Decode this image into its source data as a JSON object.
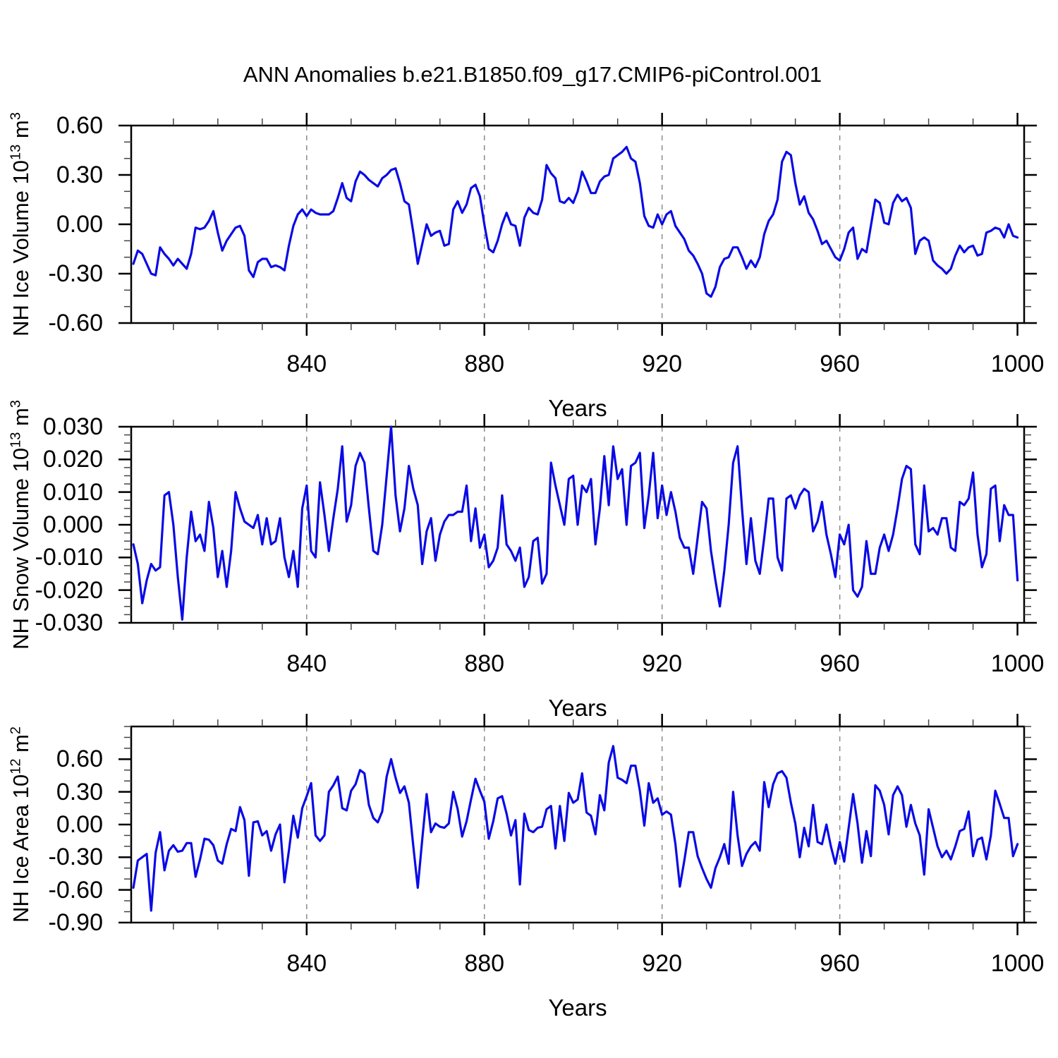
{
  "title": "ANN Anomalies b.e21.B1850.f09_g17.CMIP6-piControl.001",
  "line_color": "#0A0AE6",
  "grid_color": "#8a8a8a",
  "frame_color": "#000000",
  "x": {
    "label": "Years",
    "lim": [
      800.5,
      1001.5
    ],
    "ticks": [
      840,
      880,
      920,
      960,
      1000
    ],
    "tick_labels": [
      "840",
      "880",
      "920",
      "960",
      "1000"
    ],
    "minor_step": 10,
    "grid": [
      840,
      880,
      920,
      960
    ],
    "start_year": 801
  },
  "chart_data": [
    {
      "type": "line",
      "name": "nh-ice-volume",
      "ylabel": {
        "text": "NH Ice Volume 10",
        "sup1": "13",
        "mid": " m",
        "sup2": "3"
      },
      "ylim": [
        -0.6,
        0.6
      ],
      "ytick_values": [
        0.6,
        0.3,
        0.0,
        -0.3,
        -0.6
      ],
      "ytick_labels": [
        "0.60",
        "0.30",
        "0.00",
        "-0.30",
        "-0.60"
      ],
      "ytick_minor_step": 0.1,
      "grid": "dashed-vertical",
      "legend": "none",
      "values": [
        -0.24,
        -0.16,
        -0.18,
        -0.24,
        -0.3,
        -0.31,
        -0.14,
        -0.18,
        -0.21,
        -0.25,
        -0.21,
        -0.24,
        -0.27,
        -0.18,
        -0.02,
        -0.03,
        -0.02,
        0.02,
        0.08,
        -0.05,
        -0.16,
        -0.1,
        -0.06,
        -0.02,
        -0.01,
        -0.07,
        -0.28,
        -0.32,
        -0.23,
        -0.21,
        -0.21,
        -0.26,
        -0.25,
        -0.26,
        -0.28,
        -0.13,
        -0.01,
        0.06,
        0.09,
        0.05,
        0.09,
        0.07,
        0.06,
        0.06,
        0.06,
        0.08,
        0.16,
        0.25,
        0.16,
        0.14,
        0.26,
        0.32,
        0.3,
        0.27,
        0.25,
        0.23,
        0.28,
        0.3,
        0.33,
        0.34,
        0.25,
        0.14,
        0.12,
        -0.05,
        -0.24,
        -0.12,
        0.0,
        -0.07,
        -0.05,
        -0.04,
        -0.13,
        -0.12,
        0.09,
        0.14,
        0.07,
        0.12,
        0.22,
        0.24,
        0.17,
        0.0,
        -0.15,
        -0.17,
        -0.1,
        0.0,
        0.07,
        0.0,
        -0.01,
        -0.13,
        0.04,
        0.1,
        0.07,
        0.06,
        0.15,
        0.36,
        0.31,
        0.28,
        0.14,
        0.13,
        0.16,
        0.13,
        0.2,
        0.32,
        0.26,
        0.19,
        0.19,
        0.26,
        0.29,
        0.3,
        0.4,
        0.42,
        0.44,
        0.47,
        0.4,
        0.38,
        0.25,
        0.05,
        -0.01,
        -0.02,
        0.06,
        0.0,
        0.06,
        0.08,
        -0.01,
        -0.05,
        -0.09,
        -0.16,
        -0.19,
        -0.24,
        -0.3,
        -0.42,
        -0.44,
        -0.38,
        -0.26,
        -0.21,
        -0.2,
        -0.14,
        -0.14,
        -0.2,
        -0.27,
        -0.22,
        -0.26,
        -0.2,
        -0.06,
        0.02,
        0.06,
        0.15,
        0.38,
        0.44,
        0.42,
        0.25,
        0.12,
        0.17,
        0.07,
        0.03,
        -0.04,
        -0.12,
        -0.1,
        -0.15,
        -0.2,
        -0.22,
        -0.15,
        -0.05,
        -0.02,
        -0.21,
        -0.15,
        -0.17,
        -0.01,
        0.15,
        0.13,
        0.01,
        0.0,
        0.13,
        0.18,
        0.14,
        0.16,
        0.1,
        -0.18,
        -0.1,
        -0.08,
        -0.1,
        -0.22,
        -0.25,
        -0.27,
        -0.3,
        -0.27,
        -0.19,
        -0.13,
        -0.17,
        -0.14,
        -0.13,
        -0.19,
        -0.18,
        -0.05,
        -0.04,
        -0.02,
        -0.03,
        -0.08,
        0.0,
        -0.07,
        -0.08
      ]
    },
    {
      "type": "line",
      "name": "nh-snow-volume",
      "ylabel": {
        "text": "NH Snow Volume 10",
        "sup1": "13",
        "mid": " m",
        "sup2": "3"
      },
      "ylim": [
        -0.03,
        0.03
      ],
      "ytick_values": [
        0.03,
        0.02,
        0.01,
        0.0,
        -0.01,
        -0.02,
        -0.03
      ],
      "ytick_labels": [
        "0.030",
        "0.020",
        "0.010",
        "0.000",
        "-0.010",
        "-0.020",
        "-0.030"
      ],
      "ytick_minor_step": 0.0025,
      "grid": "dashed-vertical",
      "legend": "none",
      "values": [
        -0.006,
        -0.012,
        -0.024,
        -0.017,
        -0.012,
        -0.014,
        -0.013,
        0.009,
        0.01,
        0.0,
        -0.016,
        -0.029,
        -0.01,
        0.004,
        -0.005,
        -0.003,
        -0.008,
        0.007,
        -0.001,
        -0.016,
        -0.008,
        -0.019,
        -0.008,
        0.01,
        0.005,
        0.001,
        0.0,
        -0.001,
        0.003,
        -0.006,
        0.002,
        -0.006,
        -0.005,
        0.002,
        -0.01,
        -0.016,
        -0.008,
        -0.019,
        0.005,
        0.012,
        -0.008,
        -0.01,
        0.013,
        0.003,
        -0.008,
        0.002,
        0.011,
        0.024,
        0.001,
        0.006,
        0.018,
        0.022,
        0.019,
        0.005,
        -0.008,
        -0.009,
        0.0,
        0.015,
        0.03,
        0.009,
        -0.002,
        0.005,
        0.018,
        0.011,
        0.006,
        -0.012,
        -0.002,
        0.002,
        -0.011,
        -0.003,
        0.001,
        0.003,
        0.003,
        0.004,
        0.004,
        0.012,
        -0.005,
        0.005,
        -0.007,
        -0.003,
        -0.013,
        -0.011,
        -0.007,
        0.009,
        -0.006,
        -0.008,
        -0.011,
        -0.007,
        -0.019,
        -0.016,
        -0.005,
        -0.004,
        -0.018,
        -0.015,
        0.019,
        0.012,
        0.006,
        0.0,
        0.014,
        0.015,
        0.0,
        0.012,
        0.01,
        0.014,
        -0.006,
        0.005,
        0.021,
        0.006,
        0.024,
        0.014,
        0.017,
        0.0,
        0.018,
        0.019,
        0.022,
        -0.001,
        0.009,
        0.022,
        0.002,
        0.012,
        0.003,
        0.01,
        0.004,
        -0.004,
        -0.007,
        -0.007,
        -0.015,
        -0.004,
        0.007,
        0.005,
        -0.008,
        -0.017,
        -0.025,
        -0.014,
        0.0,
        0.019,
        0.024,
        0.005,
        -0.012,
        0.002,
        -0.011,
        -0.015,
        -0.004,
        0.008,
        0.008,
        -0.01,
        -0.014,
        0.008,
        0.009,
        0.005,
        0.009,
        0.011,
        0.01,
        -0.002,
        0.001,
        0.007,
        -0.003,
        -0.009,
        -0.016,
        -0.003,
        -0.006,
        0.0,
        -0.02,
        -0.022,
        -0.019,
        -0.005,
        -0.015,
        -0.015,
        -0.007,
        -0.003,
        -0.008,
        -0.003,
        0.005,
        0.014,
        0.018,
        0.017,
        -0.006,
        -0.009,
        0.012,
        -0.002,
        -0.001,
        -0.003,
        0.002,
        0.002,
        -0.007,
        -0.008,
        0.007,
        0.006,
        0.008,
        0.016,
        -0.003,
        -0.013,
        -0.009,
        0.011,
        0.012,
        -0.005,
        0.006,
        0.003,
        0.003,
        -0.017
      ]
    },
    {
      "type": "line",
      "name": "nh-ice-area",
      "ylabel": {
        "text": "NH Ice Area 10",
        "sup1": "12",
        "mid": " m",
        "sup2": "2"
      },
      "ylim": [
        -0.9,
        0.9
      ],
      "ytick_values": [
        0.6,
        0.3,
        0.0,
        -0.3,
        -0.6,
        -0.9
      ],
      "ytick_labels": [
        "0.60",
        "0.30",
        "0.00",
        "-0.30",
        "-0.60",
        "-0.90"
      ],
      "ytick_minor_step": 0.1,
      "grid": "dashed-vertical",
      "legend": "none",
      "values": [
        -0.58,
        -0.33,
        -0.3,
        -0.27,
        -0.79,
        -0.26,
        -0.07,
        -0.42,
        -0.24,
        -0.19,
        -0.25,
        -0.24,
        -0.17,
        -0.17,
        -0.48,
        -0.32,
        -0.13,
        -0.14,
        -0.19,
        -0.33,
        -0.36,
        -0.18,
        -0.04,
        -0.06,
        0.16,
        0.04,
        -0.47,
        0.02,
        0.03,
        -0.1,
        -0.06,
        -0.24,
        -0.09,
        0.0,
        -0.53,
        -0.24,
        0.08,
        -0.12,
        0.15,
        0.26,
        0.38,
        -0.1,
        -0.15,
        -0.1,
        0.3,
        0.36,
        0.44,
        0.15,
        0.13,
        0.31,
        0.37,
        0.5,
        0.47,
        0.18,
        0.06,
        0.02,
        0.12,
        0.44,
        0.6,
        0.43,
        0.29,
        0.35,
        0.2,
        -0.2,
        -0.58,
        -0.14,
        0.28,
        -0.07,
        0.01,
        -0.02,
        -0.03,
        0.01,
        0.3,
        0.14,
        -0.11,
        0.03,
        0.23,
        0.42,
        0.31,
        0.21,
        -0.13,
        0.03,
        0.24,
        0.26,
        0.1,
        -0.1,
        0.04,
        -0.55,
        0.1,
        -0.05,
        -0.07,
        -0.03,
        -0.02,
        0.14,
        0.17,
        -0.22,
        0.17,
        -0.15,
        0.29,
        0.2,
        0.23,
        0.47,
        0.11,
        0.08,
        -0.09,
        0.27,
        0.13,
        0.57,
        0.72,
        0.43,
        0.41,
        0.38,
        0.54,
        0.54,
        0.31,
        -0.01,
        0.38,
        0.2,
        0.24,
        0.09,
        0.12,
        0.09,
        -0.18,
        -0.57,
        -0.33,
        -0.07,
        -0.07,
        -0.29,
        -0.4,
        -0.5,
        -0.58,
        -0.4,
        -0.3,
        -0.18,
        -0.36,
        0.3,
        -0.1,
        -0.38,
        -0.27,
        -0.2,
        -0.16,
        -0.24,
        0.39,
        0.16,
        0.37,
        0.47,
        0.49,
        0.43,
        0.2,
        0.01,
        -0.3,
        -0.03,
        -0.2,
        0.18,
        -0.16,
        -0.18,
        0.0,
        -0.2,
        -0.36,
        -0.16,
        -0.34,
        -0.03,
        0.28,
        0.01,
        -0.35,
        -0.06,
        -0.29,
        0.36,
        0.31,
        0.18,
        -0.09,
        0.27,
        0.35,
        0.27,
        -0.02,
        0.18,
        0.01,
        -0.1,
        -0.46,
        0.14,
        -0.03,
        -0.2,
        -0.3,
        -0.24,
        -0.32,
        -0.2,
        -0.06,
        -0.04,
        0.12,
        -0.29,
        -0.14,
        -0.12,
        -0.32,
        -0.1,
        0.31,
        0.19,
        0.06,
        0.06,
        -0.29,
        -0.18
      ]
    }
  ]
}
